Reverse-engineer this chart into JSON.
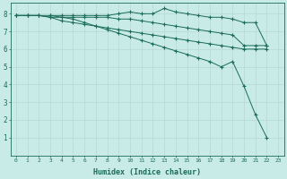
{
  "xlabel": "Humidex (Indice chaleur)",
  "background_color": "#c8ebe8",
  "grid_color": "#b8d8d4",
  "line_color": "#1a6b5a",
  "xlim": [
    -0.5,
    23.5
  ],
  "ylim": [
    0,
    8.6
  ],
  "xticks": [
    0,
    1,
    2,
    3,
    4,
    5,
    6,
    7,
    8,
    9,
    10,
    11,
    12,
    13,
    14,
    15,
    16,
    17,
    18,
    19,
    20,
    21,
    22,
    23
  ],
  "yticks": [
    1,
    2,
    3,
    4,
    5,
    6,
    7,
    8
  ],
  "series": [
    {
      "x": [
        0,
        1,
        2,
        3,
        4,
        5,
        6,
        7,
        8,
        9,
        10,
        11,
        12,
        13,
        14,
        15,
        16,
        17,
        18,
        19,
        20,
        21,
        22
      ],
      "y": [
        7.9,
        7.9,
        7.9,
        7.9,
        7.9,
        7.9,
        7.9,
        7.9,
        7.9,
        8.0,
        8.1,
        8.0,
        8.0,
        8.3,
        8.1,
        8.0,
        7.9,
        7.8,
        7.8,
        7.7,
        7.5,
        7.5,
        6.2
      ]
    },
    {
      "x": [
        0,
        1,
        2,
        3,
        4,
        5,
        6,
        7,
        8,
        9,
        10,
        11,
        12,
        13,
        14,
        15,
        16,
        17,
        18,
        19,
        20,
        21,
        22
      ],
      "y": [
        7.9,
        7.9,
        7.9,
        7.8,
        7.8,
        7.8,
        7.8,
        7.8,
        7.8,
        7.7,
        7.7,
        7.6,
        7.5,
        7.4,
        7.3,
        7.2,
        7.1,
        7.0,
        6.9,
        6.8,
        6.2,
        6.2,
        6.2
      ]
    },
    {
      "x": [
        0,
        1,
        2,
        3,
        4,
        5,
        6,
        7,
        8,
        9,
        10,
        11,
        12,
        13,
        14,
        15,
        16,
        17,
        18,
        19,
        20,
        21,
        22
      ],
      "y": [
        7.9,
        7.9,
        7.9,
        7.8,
        7.6,
        7.5,
        7.4,
        7.3,
        7.2,
        7.1,
        7.0,
        6.9,
        6.8,
        6.7,
        6.6,
        6.5,
        6.4,
        6.3,
        6.2,
        6.1,
        6.0,
        6.0,
        6.0
      ]
    },
    {
      "x": [
        3,
        4,
        5,
        6,
        7,
        8,
        9,
        10,
        11,
        12,
        13,
        14,
        15,
        16,
        17,
        18,
        19,
        20,
        21,
        22
      ],
      "y": [
        7.9,
        7.8,
        7.7,
        7.5,
        7.3,
        7.1,
        6.9,
        6.7,
        6.5,
        6.3,
        6.1,
        5.9,
        5.7,
        5.5,
        5.3,
        5.0,
        5.3,
        3.9,
        2.3,
        1.0
      ]
    }
  ]
}
